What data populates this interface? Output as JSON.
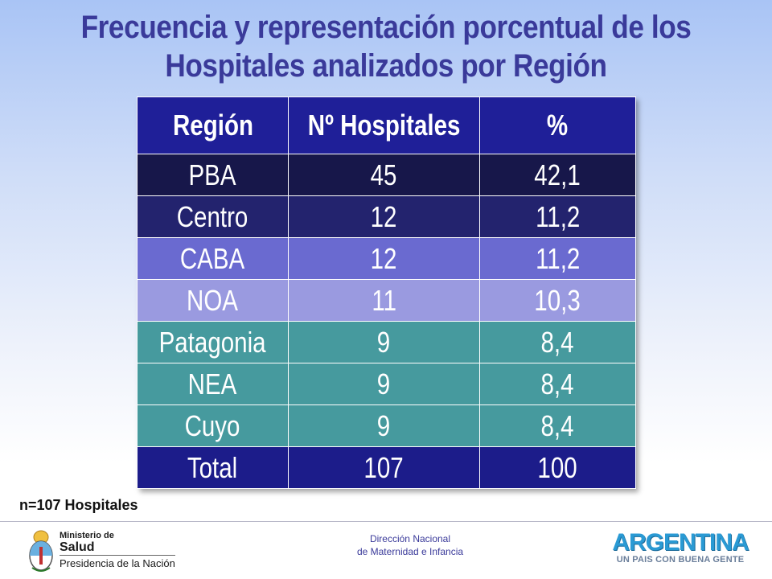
{
  "title": {
    "line1": "Frecuencia y representación porcentual de los",
    "line2": "Hospitales analizados por Región"
  },
  "table": {
    "headers": [
      "Región",
      "Nº Hospitales",
      "%"
    ],
    "header_color": "#1f1f98",
    "rows": [
      {
        "region": "PBA",
        "hospitales": "45",
        "pct": "42,1",
        "color": "#17174a"
      },
      {
        "region": "Centro",
        "hospitales": "12",
        "pct": "11,2",
        "color": "#23236e"
      },
      {
        "region": "CABA",
        "hospitales": "12",
        "pct": "11,2",
        "color": "#6a6ad0"
      },
      {
        "region": "NOA",
        "hospitales": "11",
        "pct": "10,3",
        "color": "#9a9ae0"
      },
      {
        "region": "Patagonia",
        "hospitales": "9",
        "pct": "8,4",
        "color": "#469a9e"
      },
      {
        "region": "NEA",
        "hospitales": "9",
        "pct": "8,4",
        "color": "#469a9e"
      },
      {
        "region": "Cuyo",
        "hospitales": "9",
        "pct": "8,4",
        "color": "#469a9e"
      },
      {
        "region": "Total",
        "hospitales": "107",
        "pct": "100",
        "color": "#1c1c8a"
      }
    ]
  },
  "footnote": "n=107 Hospitales",
  "footer": {
    "ministerio_line1": "Ministerio de",
    "ministerio_line2": "Salud",
    "ministerio_line3": "Presidencia de la Nación",
    "direccion_line1": "Dirección Nacional",
    "direccion_line2": "de Maternidad e Infancia",
    "argentina_big": "ARGENTINA",
    "argentina_small": "UN PAIS CON BUENA GENTE"
  },
  "chart_data": {
    "type": "table",
    "columns": [
      "Región",
      "Nº Hospitales",
      "%"
    ],
    "rows": [
      [
        "PBA",
        45,
        42.1
      ],
      [
        "Centro",
        12,
        11.2
      ],
      [
        "CABA",
        12,
        11.2
      ],
      [
        "NOA",
        11,
        10.3
      ],
      [
        "Patagonia",
        9,
        8.4
      ],
      [
        "NEA",
        9,
        8.4
      ],
      [
        "Cuyo",
        9,
        8.4
      ],
      [
        "Total",
        107,
        100
      ]
    ]
  }
}
